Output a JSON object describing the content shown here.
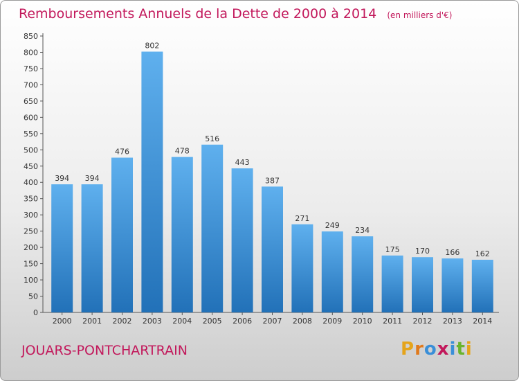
{
  "chart_data": {
    "type": "bar",
    "title": "Remboursements Annuels de la Dette de 2000 à 2014",
    "unit": "(en milliers d'€)",
    "categories": [
      "2000",
      "2001",
      "2002",
      "2003",
      "2004",
      "2005",
      "2006",
      "2007",
      "2008",
      "2009",
      "2010",
      "2011",
      "2012",
      "2013",
      "2014"
    ],
    "values": [
      394,
      394,
      476,
      802,
      478,
      516,
      443,
      387,
      271,
      249,
      234,
      175,
      170,
      166,
      162
    ],
    "ylim": [
      0,
      850
    ],
    "yticks": [
      0,
      50,
      100,
      150,
      200,
      250,
      300,
      350,
      400,
      450,
      500,
      550,
      600,
      650,
      700,
      750,
      800,
      850
    ],
    "grid": false,
    "bar_color": "#3a8fd8",
    "title_color": "#c2185b"
  },
  "footer": {
    "city": "JOUARS-PONTCHARTRAIN",
    "brand": "Proxiti"
  }
}
